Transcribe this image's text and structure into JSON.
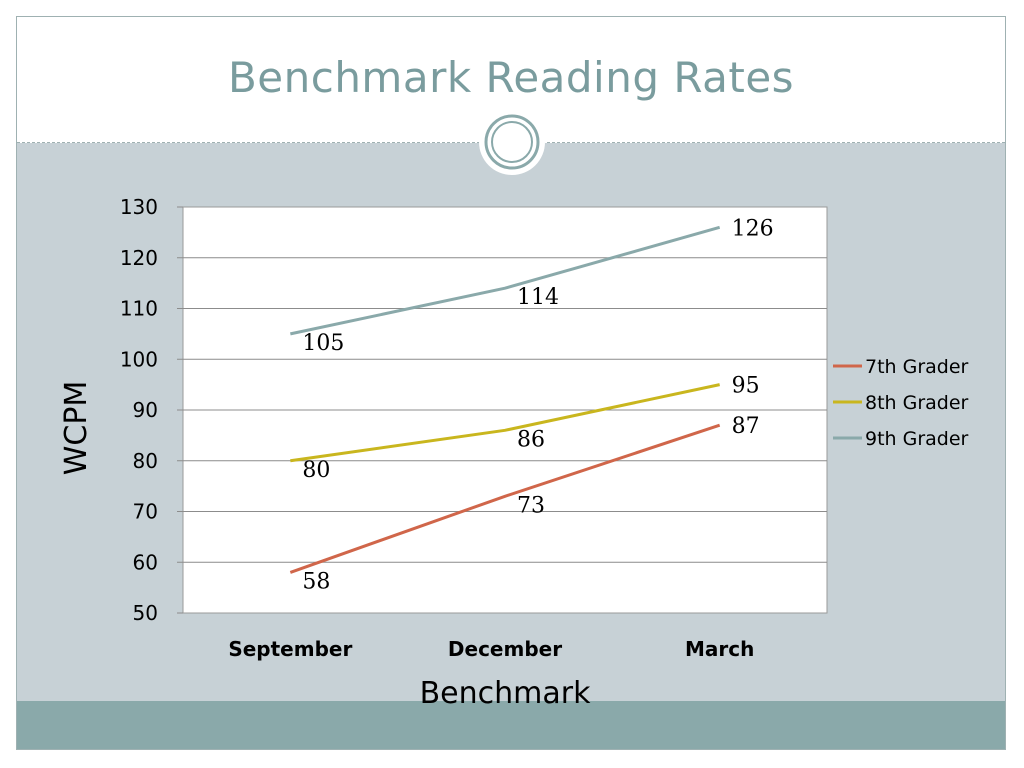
{
  "slide": {
    "title": "Benchmark Reading Rates",
    "colors": {
      "title": "#7a9c9e",
      "content_bg": "#c7d1d6",
      "footer": "#8aa9aa",
      "ornament": "#8aa9aa"
    }
  },
  "chart_data": {
    "type": "line",
    "title": "",
    "xlabel": "Benchmark",
    "ylabel": "WCPM",
    "categories": [
      "September",
      "December",
      "March"
    ],
    "ylim": [
      50,
      130
    ],
    "yticks": [
      50,
      60,
      70,
      80,
      90,
      100,
      110,
      120,
      130
    ],
    "grid": true,
    "legend_position": "right",
    "series": [
      {
        "name": "7th Grader",
        "values": [
          58,
          73,
          87
        ],
        "color": "#d0664a"
      },
      {
        "name": "8th Grader",
        "values": [
          80,
          86,
          95
        ],
        "color": "#c9b61e"
      },
      {
        "name": "9th Grader",
        "values": [
          105,
          114,
          126
        ],
        "color": "#8aa9aa"
      }
    ]
  }
}
